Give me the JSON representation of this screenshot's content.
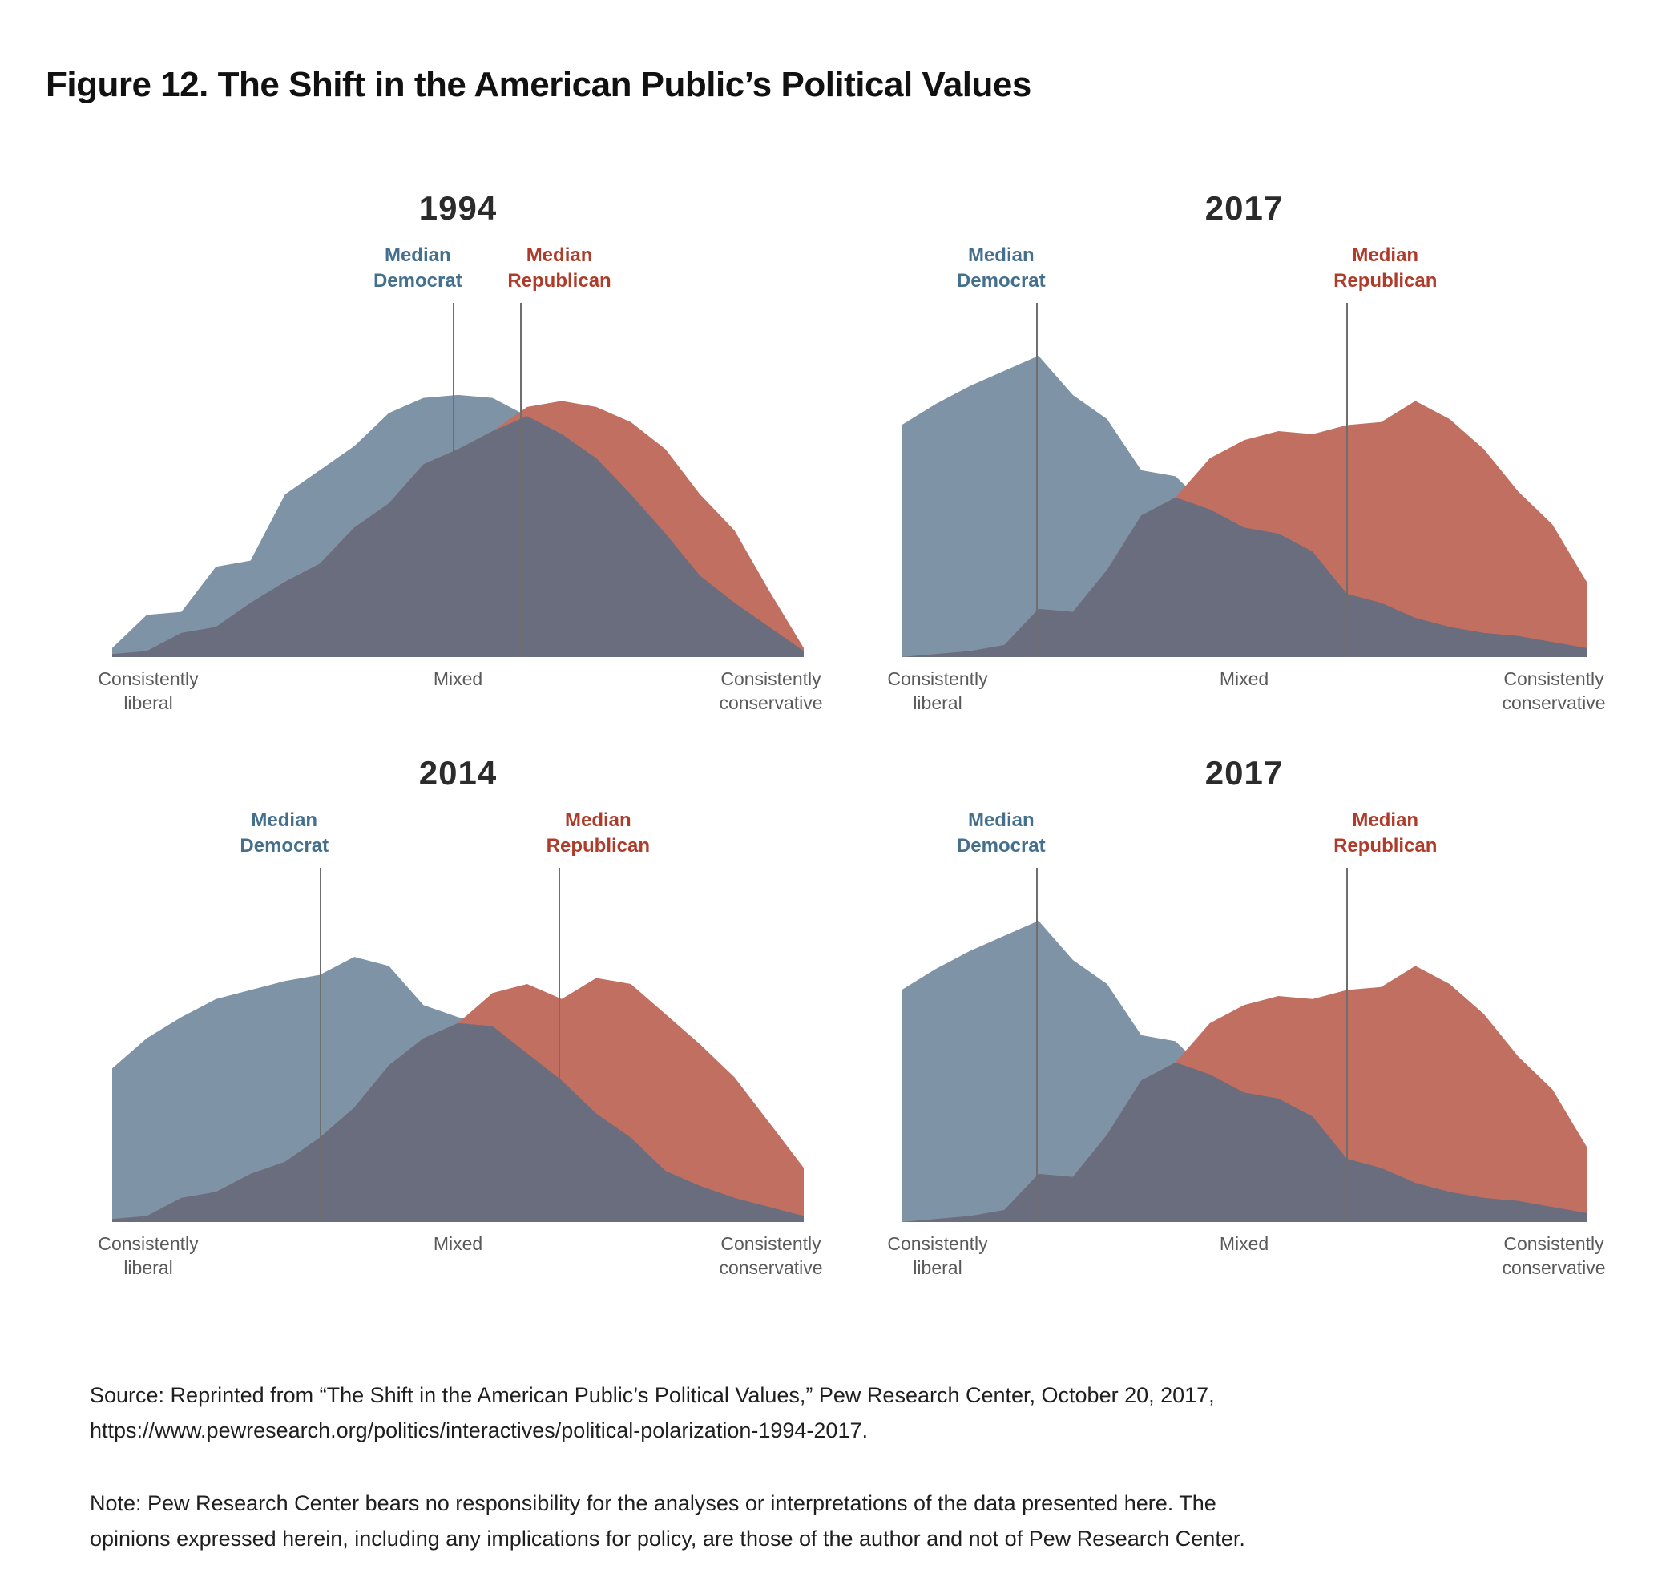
{
  "figure_title": "Figure 12. The Shift in the American Public’s Political Values",
  "colors": {
    "democrat_area": "#7e93a6",
    "republican_area": "#c06f60",
    "overlap_area": "#696d7e",
    "democrat_label": "#44708e",
    "republican_label": "#af3c2b",
    "median_line": "#6e6e6e",
    "chart_title": "#2b2b2b",
    "axis_label": "#5a5a5a",
    "figure_title_color": "#111111",
    "body_text": "#1f1f1f"
  },
  "labels": {
    "median_democrat": "Median\nDemocrat",
    "median_republican": "Median\nRepublican"
  },
  "axis": {
    "left": "Consistently\nliberal",
    "center": "Mixed",
    "right": "Consistently\nconservative"
  },
  "source": "Source: Reprinted from “The Shift in the American Public’s Political Values,” Pew Research Center, October 20, 2017,\nhttps://www.pewresearch.org/politics/interactives/political-polarization-1994-2017.",
  "note": "Note: Pew Research Center bears no responsibility for the analyses or interpretations of the data presented here. The\nopinions expressed herein, including any implications for policy, are those of the author and not of Pew Research Center.",
  "chart_data": [
    {
      "type": "area",
      "title": "1994",
      "position": "top-left",
      "x_scale": {
        "min_label": "Consistently liberal",
        "mid_label": "Mixed",
        "max_label": "Consistently conservative",
        "points": 21
      },
      "units": "relative curve height, % of tallest peak in figure (2017 Democrat peak = 100)",
      "series": [
        {
          "name": "Democrat",
          "values": [
            3,
            14,
            15,
            30,
            32,
            54,
            62,
            70,
            81,
            86,
            87,
            86,
            80,
            74,
            66,
            54,
            41,
            27,
            18,
            10,
            2
          ]
        },
        {
          "name": "Republican",
          "values": [
            1,
            2,
            8,
            10,
            18,
            25,
            31,
            43,
            51,
            64,
            69,
            75,
            83,
            85,
            83,
            78,
            69,
            54,
            42,
            22,
            3
          ]
        }
      ],
      "median_democrat_x": 0.494,
      "median_republican_x": 0.591
    },
    {
      "type": "area",
      "title": "2017",
      "position": "top-right",
      "x_scale": {
        "min_label": "Consistently liberal",
        "mid_label": "Mixed",
        "max_label": "Consistently conservative",
        "points": 21
      },
      "units": "relative curve height, % of tallest peak in figure (2017 Democrat peak = 100)",
      "series": [
        {
          "name": "Democrat",
          "values": [
            77,
            84,
            90,
            95,
            100,
            87,
            79,
            62,
            60,
            49,
            43,
            41,
            35,
            21,
            18,
            13,
            10,
            8,
            7,
            5,
            3
          ]
        },
        {
          "name": "Republican",
          "values": [
            0,
            1,
            2,
            4,
            16,
            15,
            29,
            47,
            53,
            66,
            72,
            75,
            74,
            77,
            78,
            85,
            79,
            69,
            55,
            44,
            25
          ]
        }
      ],
      "median_democrat_x": 0.198,
      "median_republican_x": 0.65
    },
    {
      "type": "area",
      "title": "2014",
      "position": "bottom-left",
      "x_scale": {
        "min_label": "Consistently liberal",
        "mid_label": "Mixed",
        "max_label": "Consistently conservative",
        "points": 21
      },
      "units": "relative curve height, % of tallest peak in figure (2017 Democrat peak = 100)",
      "series": [
        {
          "name": "Democrat",
          "values": [
            51,
            61,
            68,
            74,
            77,
            80,
            82,
            88,
            85,
            72,
            68,
            65,
            56,
            47,
            36,
            28,
            17,
            12,
            8,
            5,
            2
          ]
        },
        {
          "name": "Republican",
          "values": [
            1,
            2,
            8,
            10,
            16,
            20,
            28,
            38,
            52,
            61,
            66,
            76,
            79,
            74,
            81,
            79,
            69,
            59,
            48,
            33,
            18
          ]
        }
      ],
      "median_democrat_x": 0.301,
      "median_republican_x": 0.647
    },
    {
      "type": "area",
      "title": "2017",
      "position": "bottom-right",
      "x_scale": {
        "min_label": "Consistently liberal",
        "mid_label": "Mixed",
        "max_label": "Consistently conservative",
        "points": 21
      },
      "units": "relative curve height, % of tallest peak in figure (2017 Democrat peak = 100)",
      "series": [
        {
          "name": "Democrat",
          "values": [
            77,
            84,
            90,
            95,
            100,
            87,
            79,
            62,
            60,
            49,
            43,
            41,
            35,
            21,
            18,
            13,
            10,
            8,
            7,
            5,
            3
          ]
        },
        {
          "name": "Republican",
          "values": [
            0,
            1,
            2,
            4,
            16,
            15,
            29,
            47,
            53,
            66,
            72,
            75,
            74,
            77,
            78,
            85,
            79,
            69,
            55,
            44,
            25
          ]
        }
      ],
      "median_democrat_x": 0.198,
      "median_republican_x": 0.65
    }
  ]
}
